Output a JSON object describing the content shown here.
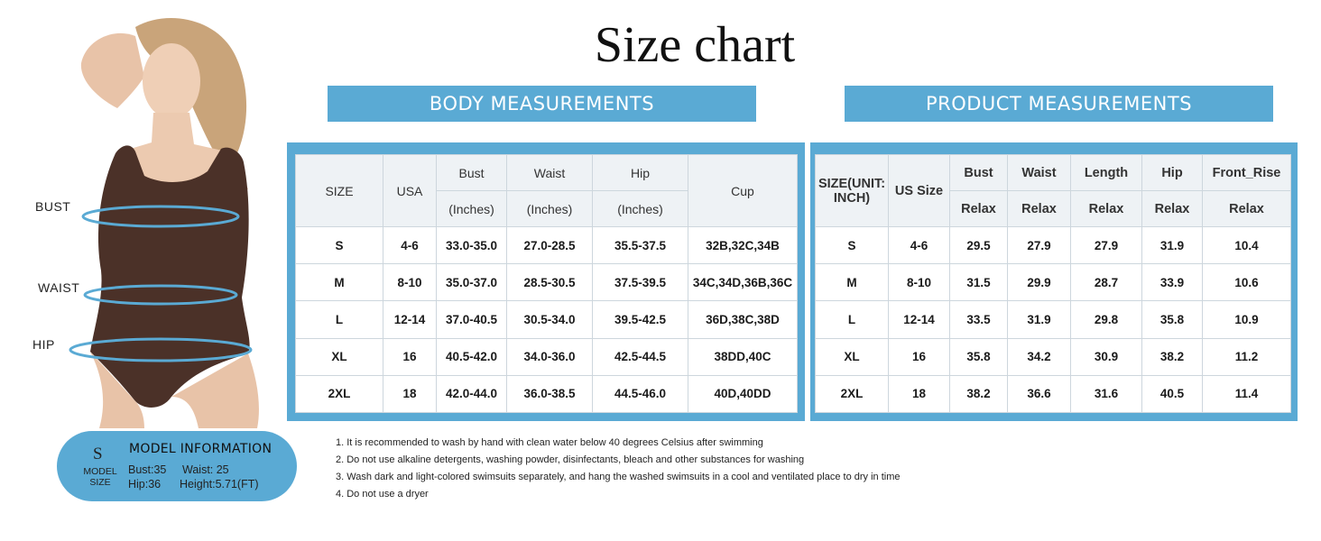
{
  "title": "Size chart",
  "body_banner": "BODY MEASUREMENTS",
  "product_banner": "PRODUCT MEASUREMENTS",
  "figure": {
    "labels": {
      "bust": "BUST",
      "waist": "WAIST",
      "hip": "HIP"
    },
    "swimsuit_color": "#4b3128"
  },
  "model_info": {
    "size": "S",
    "size_caption": "MODEL SIZE",
    "title": "MODEL INFORMATION",
    "bust": "Bust:35",
    "waist": "Waist: 25",
    "hip": "Hip:36",
    "height": "Height:5.71(FT)"
  },
  "body_table": {
    "headers": {
      "size": "SIZE",
      "usa": "USA",
      "bust": "Bust",
      "waist": "Waist",
      "hip": "Hip",
      "cup": "Cup",
      "unit": "(Inches)"
    },
    "rows": [
      [
        "S",
        "4-6",
        "33.0-35.0",
        "27.0-28.5",
        "35.5-37.5",
        "32B,32C,34B"
      ],
      [
        "M",
        "8-10",
        "35.0-37.0",
        "28.5-30.5",
        "37.5-39.5",
        "34C,34D,36B,36C"
      ],
      [
        "L",
        "12-14",
        "37.0-40.5",
        "30.5-34.0",
        "39.5-42.5",
        "36D,38C,38D"
      ],
      [
        "XL",
        "16",
        "40.5-42.0",
        "34.0-36.0",
        "42.5-44.5",
        "38DD,40C"
      ],
      [
        "2XL",
        "18",
        "42.0-44.0",
        "36.0-38.5",
        "44.5-46.0",
        "40D,40DD"
      ]
    ]
  },
  "product_table": {
    "headers": {
      "size": "SIZE(UNIT: INCH)",
      "us_size": "US Size",
      "bust": "Bust",
      "waist": "Waist",
      "length": "Length",
      "hip": "Hip",
      "front_rise": "Front_Rise",
      "relax": "Relax"
    },
    "rows": [
      [
        "S",
        "4-6",
        "29.5",
        "27.9",
        "27.9",
        "31.9",
        "10.4"
      ],
      [
        "M",
        "8-10",
        "31.5",
        "29.9",
        "28.7",
        "33.9",
        "10.6"
      ],
      [
        "L",
        "12-14",
        "33.5",
        "31.9",
        "29.8",
        "35.8",
        "10.9"
      ],
      [
        "XL",
        "16",
        "35.8",
        "34.2",
        "30.9",
        "38.2",
        "11.2"
      ],
      [
        "2XL",
        "18",
        "38.2",
        "36.6",
        "31.6",
        "40.5",
        "11.4"
      ]
    ]
  },
  "notes": [
    "1. It is recommended to wash by hand with clean water below 40 degrees Celsius after swimming",
    "2. Do not use alkaline detergents, washing powder, disinfectants, bleach and other substances for washing",
    "3. Wash dark and light-colored swimsuits separately, and hang the washed swimsuits in a cool and ventilated place to dry in time",
    "4. Do not use a dryer"
  ],
  "colors": {
    "accent": "#5aaad4",
    "header_bg": "#eef2f5"
  }
}
